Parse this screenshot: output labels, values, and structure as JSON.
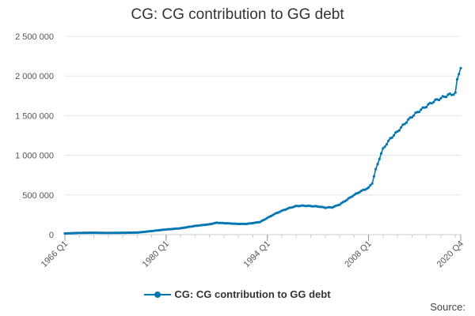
{
  "chart_data": {
    "type": "line",
    "title": "CG: CG contribution to GG debt",
    "xlabel": "",
    "ylabel": "",
    "x_start": "1966 Q1",
    "x_end": "2020 Q4",
    "x_tick_labels": [
      "1966 Q1",
      "1980 Q1",
      "1994 Q1",
      "2008 Q1",
      "2020 Q4"
    ],
    "y_tick_labels": [
      "0",
      "500 000",
      "1 000 000",
      "1 500 000",
      "2 000 000",
      "2 500 000"
    ],
    "ylim": [
      0,
      2500000
    ],
    "grid": true,
    "legend_position": "bottom",
    "series": [
      {
        "name": "CG: CG contribution to GG debt",
        "color": "#0077b3",
        "points": [
          [
            "1966 Q1",
            15000
          ],
          [
            "1968 Q1",
            22000
          ],
          [
            "1970 Q1",
            24000
          ],
          [
            "1972 Q1",
            22000
          ],
          [
            "1974 Q1",
            24000
          ],
          [
            "1976 Q1",
            26000
          ],
          [
            "1978 Q1",
            45000
          ],
          [
            "1980 Q1",
            65000
          ],
          [
            "1982 Q1",
            80000
          ],
          [
            "1984 Q1",
            110000
          ],
          [
            "1986 Q1",
            130000
          ],
          [
            "1987 Q1",
            150000
          ],
          [
            "1988 Q1",
            145000
          ],
          [
            "1989 Q1",
            140000
          ],
          [
            "1990 Q1",
            135000
          ],
          [
            "1991 Q1",
            135000
          ],
          [
            "1992 Q1",
            145000
          ],
          [
            "1993 Q1",
            160000
          ],
          [
            "1994 Q1",
            210000
          ],
          [
            "1995 Q1",
            260000
          ],
          [
            "1996 Q1",
            300000
          ],
          [
            "1997 Q1",
            335000
          ],
          [
            "1998 Q1",
            360000
          ],
          [
            "1999 Q1",
            365000
          ],
          [
            "2000 Q1",
            360000
          ],
          [
            "2001 Q1",
            355000
          ],
          [
            "2002 Q1",
            340000
          ],
          [
            "2003 Q1",
            345000
          ],
          [
            "2004 Q1",
            380000
          ],
          [
            "2005 Q1",
            440000
          ],
          [
            "2006 Q1",
            500000
          ],
          [
            "2007 Q1",
            550000
          ],
          [
            "2008 Q1",
            590000
          ],
          [
            "2008 Q3",
            650000
          ],
          [
            "2009 Q1",
            820000
          ],
          [
            "2009 Q3",
            960000
          ],
          [
            "2010 Q1",
            1080000
          ],
          [
            "2011 Q1",
            1210000
          ],
          [
            "2012 Q1",
            1300000
          ],
          [
            "2013 Q1",
            1400000
          ],
          [
            "2014 Q1",
            1490000
          ],
          [
            "2015 Q1",
            1560000
          ],
          [
            "2016 Q1",
            1620000
          ],
          [
            "2017 Q1",
            1680000
          ],
          [
            "2018 Q1",
            1720000
          ],
          [
            "2019 Q1",
            1760000
          ],
          [
            "2020 Q1",
            1780000
          ],
          [
            "2020 Q2",
            1950000
          ],
          [
            "2020 Q3",
            2040000
          ],
          [
            "2020 Q4",
            2100000
          ]
        ]
      }
    ]
  },
  "source_label": "Source:"
}
